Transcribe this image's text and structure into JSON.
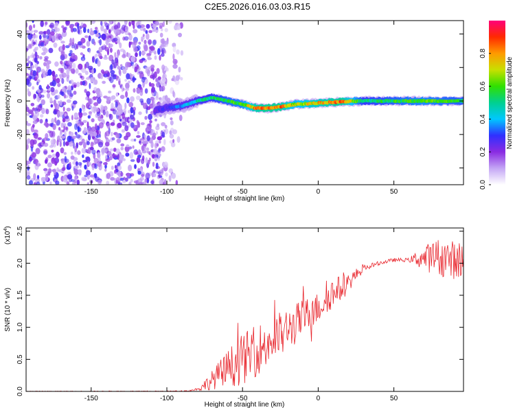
{
  "title": "C2E5.2026.016.03.03.R15",
  "chart_data": [
    {
      "type": "heatmap",
      "name": "spectrogram",
      "xlabel": "Height of straight line (km)",
      "ylabel": "Frequency (Hz)",
      "xlim": [
        -193,
        96
      ],
      "ylim": [
        -50,
        48
      ],
      "xticks": [
        -150,
        -100,
        -50,
        0,
        50
      ],
      "xtick_labels": [
        "-150",
        "-100",
        "-50",
        "0",
        "50"
      ],
      "yticks": [
        -40,
        -20,
        0,
        20,
        40
      ],
      "ytick_labels": [
        "-40",
        "-20",
        "0",
        "20",
        "40"
      ],
      "noise_region_x": [
        -193,
        -90
      ],
      "ridge": {
        "x": [
          -108,
          -100,
          -90,
          -80,
          -70,
          -60,
          -50,
          -42,
          -35,
          -25,
          -15,
          -5,
          5,
          15,
          30,
          50,
          70,
          90,
          96
        ],
        "frequency": [
          -6,
          -4,
          -3,
          0,
          2,
          0,
          -2,
          -4,
          -4.5,
          -3.5,
          -2,
          -1.5,
          -1,
          -0.5,
          0,
          0,
          0,
          0,
          0
        ],
        "amplitude": [
          0.25,
          0.3,
          0.4,
          0.5,
          0.55,
          0.6,
          0.65,
          0.85,
          0.9,
          0.9,
          0.7,
          0.8,
          0.85,
          0.9,
          0.55,
          0.6,
          0.65,
          0.6,
          0.6
        ]
      },
      "colorbar": {
        "label": "Normalized spectral amplitude",
        "range": [
          0,
          1
        ],
        "ticks": [
          0.0,
          0.2,
          0.4,
          0.6,
          0.8
        ],
        "tick_labels": [
          "0.0",
          "0.2",
          "0.4",
          "0.6",
          "0.8"
        ],
        "colors": [
          "#ffffff",
          "#c4a6f5",
          "#8a2be2",
          "#3030ff",
          "#00c8ff",
          "#00d090",
          "#30e000",
          "#c8e000",
          "#ff9a00",
          "#ff2a00",
          "#ff007a"
        ]
      }
    },
    {
      "type": "line",
      "name": "snr",
      "xlabel": "Height of straight line (km)",
      "ylabel": "SNR (10 * v/v)",
      "exponent_label": "(x10",
      "exponent_power": "4",
      "exponent_close": ")",
      "xlim": [
        -193,
        96
      ],
      "ylim": [
        0,
        2.55
      ],
      "xticks": [
        -150,
        -100,
        -50,
        0,
        50
      ],
      "xtick_labels": [
        "-150",
        "-100",
        "-50",
        "0",
        "50"
      ],
      "yticks": [
        0,
        0.5,
        1.0,
        1.5,
        2.0,
        2.5
      ],
      "ytick_labels": [
        "0.0",
        "0.5",
        "1.0",
        "1.5",
        "2.0",
        "2.5"
      ],
      "line_color": "#e8232a",
      "trend": {
        "x": [
          -193,
          -100,
          -85,
          -78,
          -70,
          -60,
          -50,
          -40,
          -30,
          -20,
          -10,
          0,
          5,
          10,
          15,
          20,
          25,
          30,
          40,
          50,
          60,
          65,
          70,
          80,
          90,
          96
        ],
        "y": [
          0.0,
          0.0,
          0.01,
          0.05,
          0.18,
          0.35,
          0.5,
          0.65,
          0.8,
          0.95,
          1.15,
          1.3,
          1.45,
          1.55,
          1.6,
          1.7,
          1.82,
          1.92,
          2.0,
          2.05,
          2.05,
          2.07,
          2.08,
          2.1,
          2.05,
          2.05
        ]
      },
      "noise_amplitude": {
        "x": [
          -193,
          -85,
          -80,
          -70,
          -60,
          -50,
          -40,
          -30,
          -20,
          -10,
          0,
          10,
          20,
          30,
          40,
          60,
          65,
          70,
          80,
          96
        ],
        "y": [
          0.005,
          0.01,
          0.02,
          0.15,
          0.3,
          0.4,
          0.4,
          0.4,
          0.35,
          0.3,
          0.25,
          0.25,
          0.15,
          0.05,
          0.03,
          0.03,
          0.12,
          0.2,
          0.3,
          0.3
        ]
      }
    }
  ]
}
